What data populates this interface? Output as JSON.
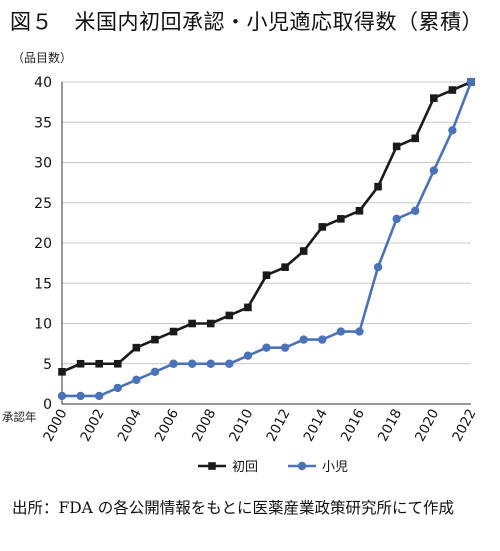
{
  "figure": {
    "title": "図５　米国内初回承認・小児適応取得数（累積）",
    "source": "出所：FDA の各公開情報をもとに医薬産業政策研究所にて作成"
  },
  "chart_data": {
    "type": "line",
    "y_unit_label": "（品目数）",
    "x_axis_label": "承認年",
    "x": [
      2000,
      2001,
      2002,
      2003,
      2004,
      2005,
      2006,
      2007,
      2008,
      2009,
      2010,
      2011,
      2012,
      2013,
      2014,
      2015,
      2016,
      2017,
      2018,
      2019,
      2020,
      2021,
      2022
    ],
    "x_tick_labels": [
      "2000",
      "2002",
      "2004",
      "2006",
      "2008",
      "2010",
      "2012",
      "2014",
      "2016",
      "2018",
      "2020",
      "2022"
    ],
    "ylim": [
      0,
      40
    ],
    "y_ticks": [
      0,
      5,
      10,
      15,
      20,
      25,
      30,
      35,
      40
    ],
    "grid": "horizontal",
    "legend_position": "bottom",
    "series": [
      {
        "name": "初回",
        "color": "#1a1a1a",
        "marker": "square",
        "values": [
          4,
          5,
          5,
          5,
          7,
          8,
          9,
          10,
          10,
          11,
          12,
          16,
          17,
          19,
          22,
          23,
          24,
          27,
          32,
          33,
          38,
          39,
          40
        ]
      },
      {
        "name": "小児",
        "color": "#4a72b8",
        "marker": "circle",
        "values": [
          1,
          1,
          1,
          2,
          3,
          4,
          5,
          5,
          5,
          5,
          6,
          7,
          7,
          8,
          8,
          9,
          9,
          17,
          23,
          24,
          29,
          34,
          40
        ]
      }
    ]
  }
}
